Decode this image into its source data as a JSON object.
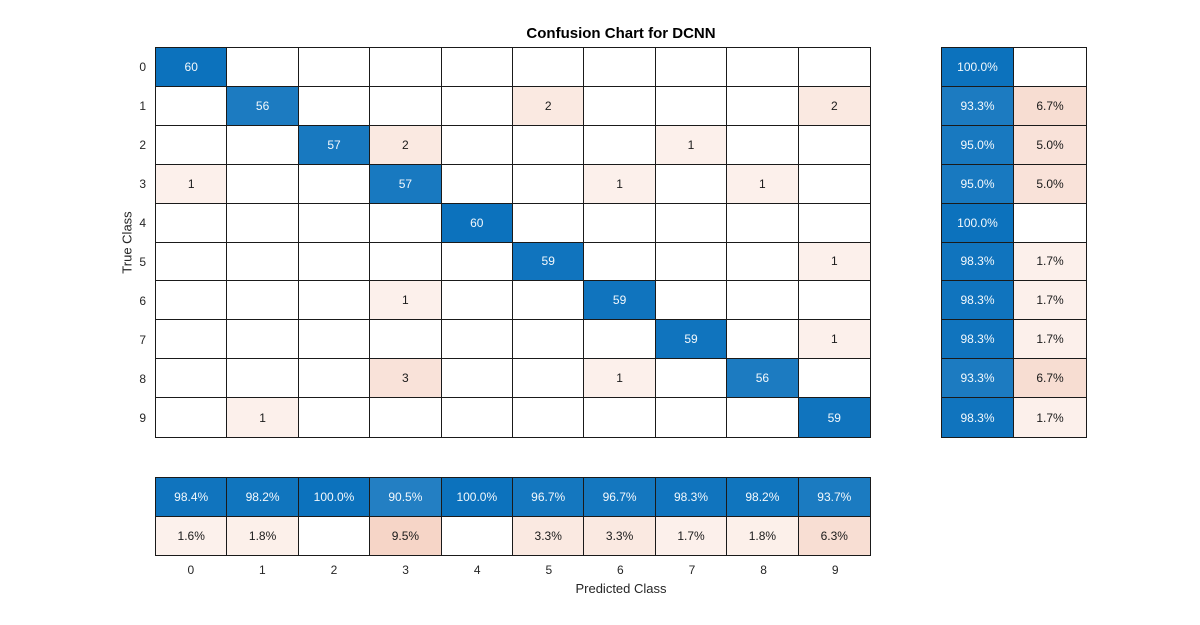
{
  "chart_data": {
    "type": "heatmap",
    "title": "Confusion Chart for DCNN",
    "xlabel": "Predicted Class",
    "ylabel": "True Class",
    "classes": [
      "0",
      "1",
      "2",
      "3",
      "4",
      "5",
      "6",
      "7",
      "8",
      "9"
    ],
    "matrix": [
      [
        60,
        0,
        0,
        0,
        0,
        0,
        0,
        0,
        0,
        0
      ],
      [
        0,
        56,
        0,
        0,
        0,
        2,
        0,
        0,
        0,
        2
      ],
      [
        0,
        0,
        57,
        2,
        0,
        0,
        0,
        1,
        0,
        0
      ],
      [
        1,
        0,
        0,
        57,
        0,
        0,
        1,
        0,
        1,
        0
      ],
      [
        0,
        0,
        0,
        0,
        60,
        0,
        0,
        0,
        0,
        0
      ],
      [
        0,
        0,
        0,
        0,
        0,
        59,
        0,
        0,
        0,
        1
      ],
      [
        0,
        0,
        0,
        1,
        0,
        0,
        59,
        0,
        0,
        0
      ],
      [
        0,
        0,
        0,
        0,
        0,
        0,
        0,
        59,
        0,
        1
      ],
      [
        0,
        0,
        0,
        3,
        0,
        0,
        1,
        0,
        56,
        0
      ],
      [
        0,
        1,
        0,
        0,
        0,
        0,
        0,
        0,
        0,
        59
      ]
    ],
    "row_summary": {
      "correct": [
        "100.0%",
        "93.3%",
        "95.0%",
        "95.0%",
        "100.0%",
        "98.3%",
        "98.3%",
        "98.3%",
        "93.3%",
        "98.3%"
      ],
      "incorrect": [
        "",
        "6.7%",
        "5.0%",
        "5.0%",
        "",
        "1.7%",
        "1.7%",
        "1.7%",
        "6.7%",
        "1.7%"
      ]
    },
    "col_summary": {
      "correct": [
        "98.4%",
        "98.2%",
        "100.0%",
        "90.5%",
        "100.0%",
        "96.7%",
        "96.7%",
        "98.3%",
        "98.2%",
        "93.7%"
      ],
      "incorrect": [
        "1.6%",
        "1.8%",
        "",
        "9.5%",
        "",
        "3.3%",
        "3.3%",
        "1.7%",
        "1.8%",
        "6.3%"
      ]
    },
    "colors": {
      "diagonal_blue": "#0c72bd",
      "off_diagonal_red": "#d95319",
      "grid_line": "#1a1a1a",
      "text_on_blue": "#f2f8fc",
      "text_dark": "#1a1a1a",
      "tick_text": "#262626"
    },
    "legend_position": "none",
    "grid": "on"
  }
}
